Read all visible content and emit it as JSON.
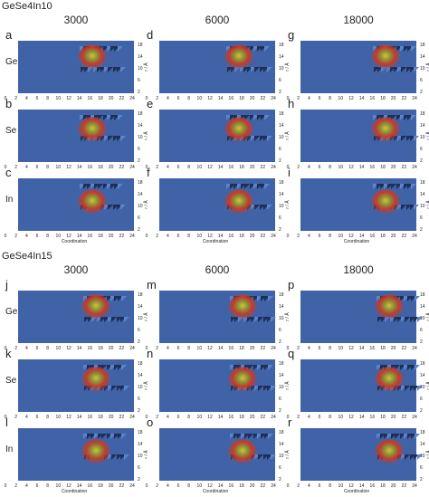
{
  "groups": [
    {
      "title": "GeSe4In10",
      "columns": [
        "3000",
        "6000",
        "18000"
      ],
      "rows": [
        "Ge",
        "Se",
        "In"
      ],
      "panels": [
        "a",
        "d",
        "g",
        "b",
        "e",
        "h",
        "c",
        "f",
        "i"
      ]
    },
    {
      "title": "GeSe4In15",
      "columns": [
        "3000",
        "6000",
        "18000"
      ],
      "rows": [
        "Ge",
        "Se",
        "In"
      ],
      "panels": [
        "j",
        "m",
        "p",
        "k",
        "n",
        "q",
        "l",
        "o",
        "r"
      ]
    }
  ],
  "axes": {
    "xticks": [
      0,
      2,
      4,
      6,
      8,
      10,
      12,
      14,
      16,
      18,
      20,
      22,
      24
    ],
    "yticks": [
      18,
      14,
      10,
      6,
      2
    ],
    "xlabel": "Coordination",
    "ylabel": "r / Å"
  }
}
